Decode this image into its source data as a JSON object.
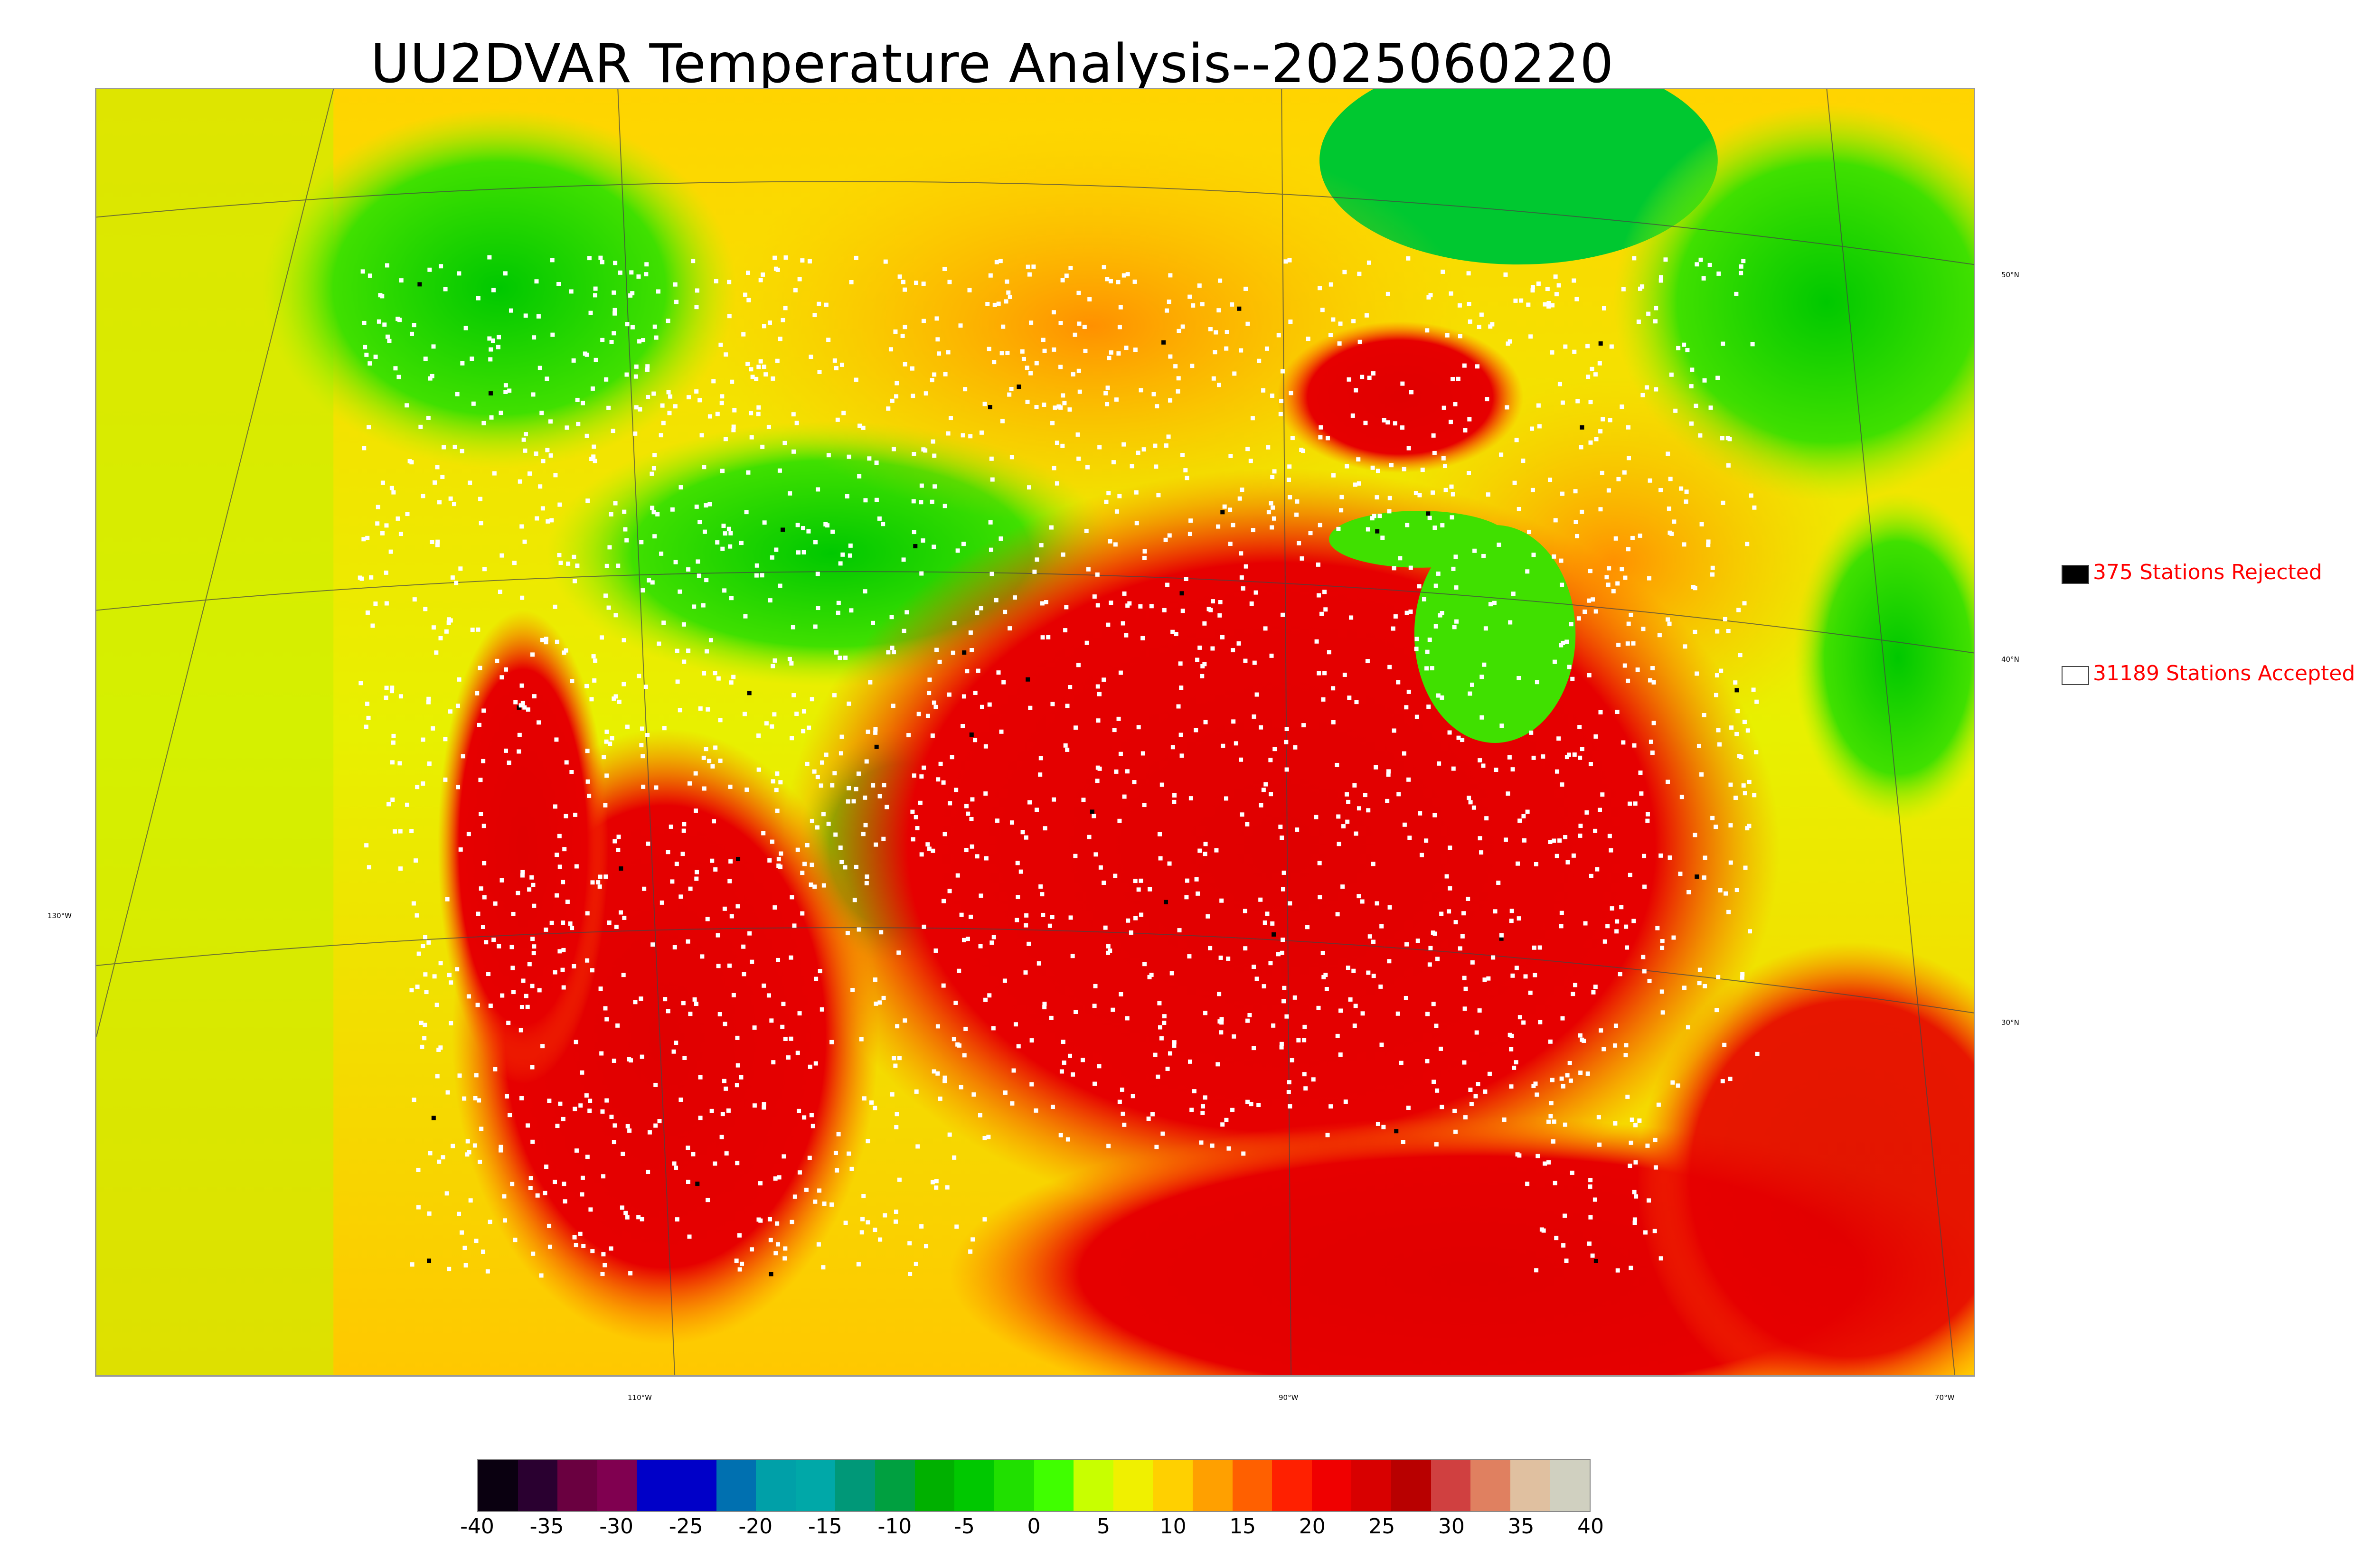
{
  "title": "UU2DVAR Temperature Analysis--2025060220",
  "legend": {
    "rejected": {
      "label": "375 Stations Rejected",
      "color": "#000000"
    },
    "accepted": {
      "label": "31189 Stations Accepted",
      "color": "#ffffff"
    }
  },
  "graticule": {
    "lon_labels": [
      "130°W",
      "110°W",
      "90°W",
      "70°W"
    ],
    "lat_labels": [
      "50°N",
      "40°N",
      "30°N"
    ]
  },
  "colorbar": {
    "ticks": [
      "-40",
      "-35",
      "-30",
      "-25",
      "-20",
      "-15",
      "-10",
      "-5",
      "0",
      "5",
      "10",
      "15",
      "20",
      "25",
      "30",
      "35",
      "40"
    ],
    "range": [
      -40,
      40
    ],
    "colors": [
      "#0a0010",
      "#2a0030",
      "#6a0040",
      "#800050",
      "#0000c8",
      "#0000c8",
      "#0070b0",
      "#00a0a8",
      "#00a8a8",
      "#009878",
      "#00a040",
      "#00b000",
      "#00c800",
      "#20e000",
      "#40ff00",
      "#c8ff00",
      "#f0f000",
      "#ffd000",
      "#ffa000",
      "#ff6000",
      "#ff2000",
      "#f00000",
      "#d80000",
      "#b80000",
      "#d04040",
      "#e08060",
      "#e0c0a0",
      "#d0d0c0"
    ]
  },
  "colors": {
    "hot": "#e60000",
    "warm": "#ff8c00",
    "mild": "#f0f000",
    "cool": "#00d000",
    "water_green": "#00c040"
  }
}
